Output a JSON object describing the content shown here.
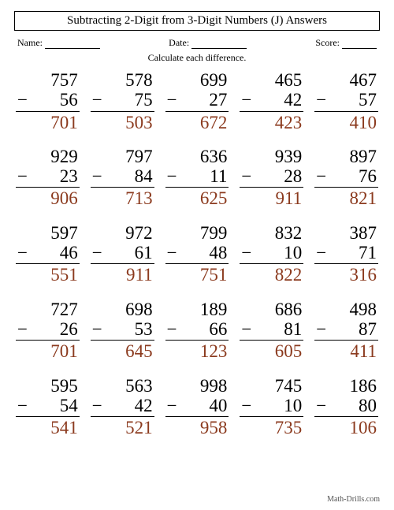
{
  "title": "Subtracting 2-Digit from 3-Digit Numbers (J) Answers",
  "header": {
    "name_label": "Name:",
    "date_label": "Date:",
    "score_label": "Score:"
  },
  "instruction": "Calculate each difference.",
  "minus": "−",
  "problems": [
    [
      {
        "a": "757",
        "b": "56",
        "ans": "701"
      },
      {
        "a": "578",
        "b": "75",
        "ans": "503"
      },
      {
        "a": "699",
        "b": "27",
        "ans": "672"
      },
      {
        "a": "465",
        "b": "42",
        "ans": "423"
      },
      {
        "a": "467",
        "b": "57",
        "ans": "410"
      }
    ],
    [
      {
        "a": "929",
        "b": "23",
        "ans": "906"
      },
      {
        "a": "797",
        "b": "84",
        "ans": "713"
      },
      {
        "a": "636",
        "b": "11",
        "ans": "625"
      },
      {
        "a": "939",
        "b": "28",
        "ans": "911"
      },
      {
        "a": "897",
        "b": "76",
        "ans": "821"
      }
    ],
    [
      {
        "a": "597",
        "b": "46",
        "ans": "551"
      },
      {
        "a": "972",
        "b": "61",
        "ans": "911"
      },
      {
        "a": "799",
        "b": "48",
        "ans": "751"
      },
      {
        "a": "832",
        "b": "10",
        "ans": "822"
      },
      {
        "a": "387",
        "b": "71",
        "ans": "316"
      }
    ],
    [
      {
        "a": "727",
        "b": "26",
        "ans": "701"
      },
      {
        "a": "698",
        "b": "53",
        "ans": "645"
      },
      {
        "a": "189",
        "b": "66",
        "ans": "123"
      },
      {
        "a": "686",
        "b": "81",
        "ans": "605"
      },
      {
        "a": "498",
        "b": "87",
        "ans": "411"
      }
    ],
    [
      {
        "a": "595",
        "b": "54",
        "ans": "541"
      },
      {
        "a": "563",
        "b": "42",
        "ans": "521"
      },
      {
        "a": "998",
        "b": "40",
        "ans": "958"
      },
      {
        "a": "745",
        "b": "10",
        "ans": "735"
      },
      {
        "a": "186",
        "b": "80",
        "ans": "106"
      }
    ]
  ],
  "footer": "Math-Drills.com",
  "styling": {
    "answer_color": "#8b3a1e",
    "num_fontsize": 23,
    "rows": 5,
    "cols": 5,
    "page_bg": "#ffffff"
  }
}
